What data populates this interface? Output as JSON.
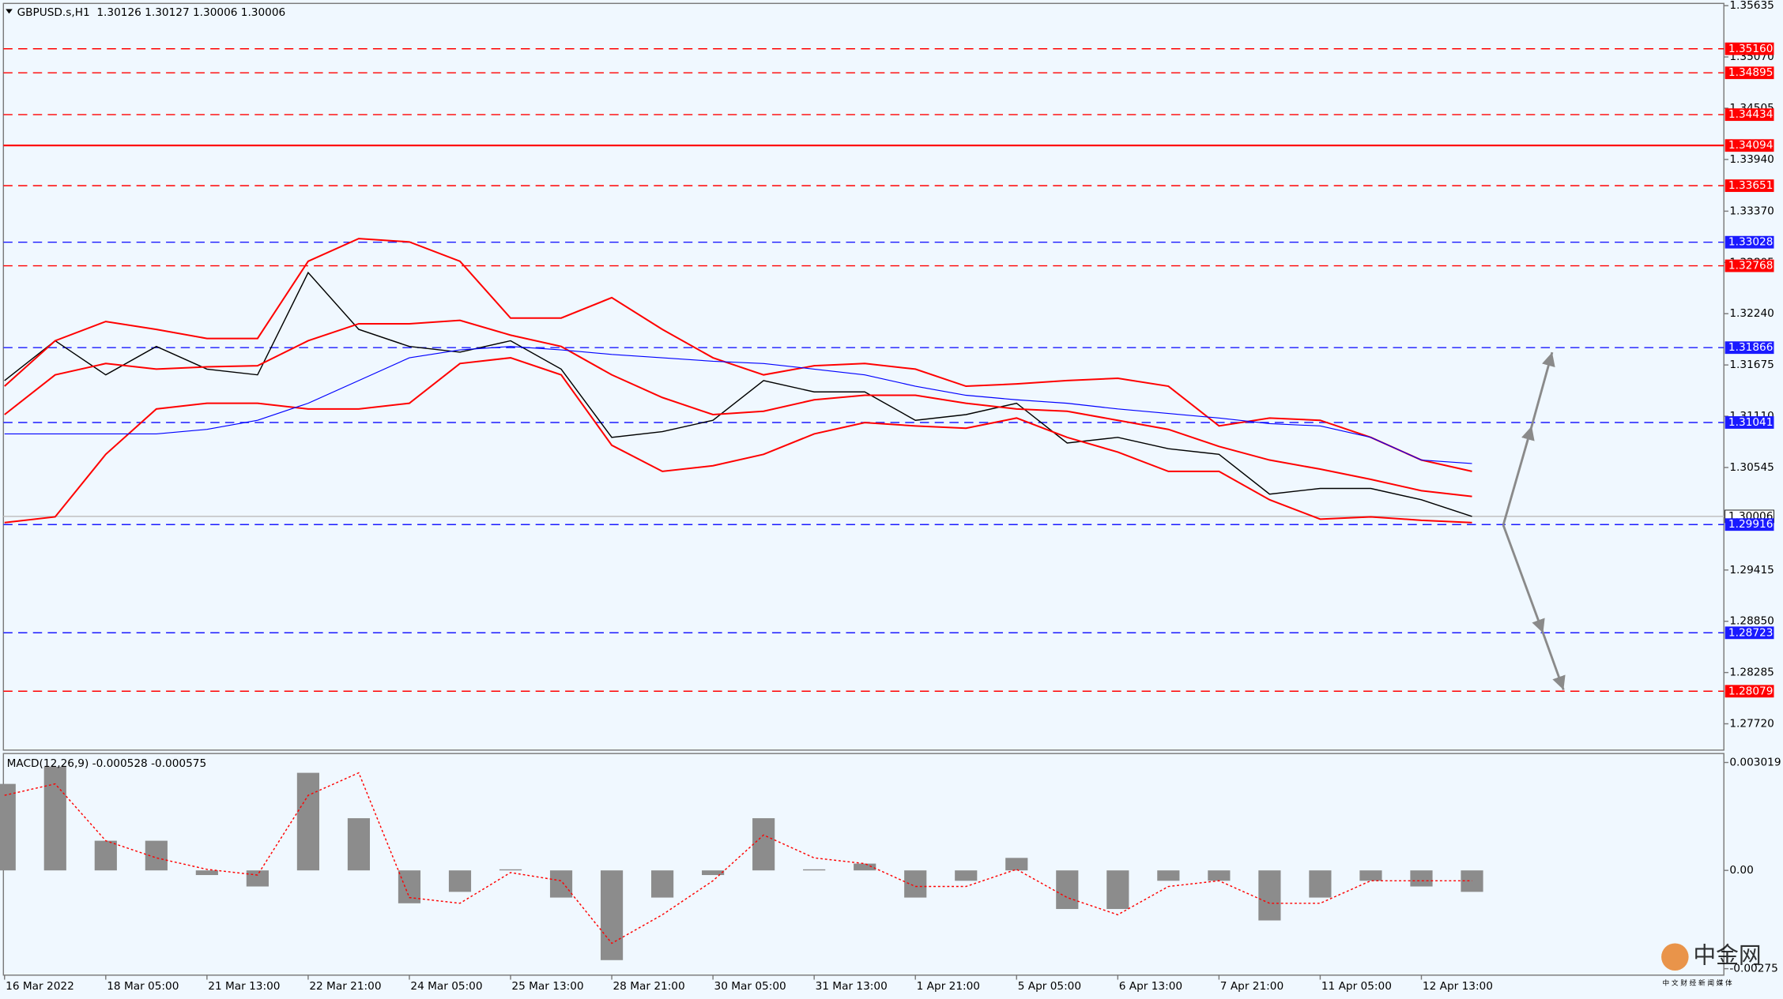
{
  "chart_data": [
    {
      "type": "line",
      "title": "GBPUSD.s,H1  1.30126 1.30127 1.30006 1.30006",
      "categories": [
        "16 Mar 2022",
        null,
        "18 Mar 05:00",
        null,
        "21 Mar 13:00",
        null,
        "22 Mar 21:00",
        null,
        "24 Mar 05:00",
        null,
        "25 Mar 13:00",
        null,
        "28 Mar 21:00",
        null,
        "30 Mar 05:00",
        null,
        "31 Mar 13:00",
        null,
        "1 Apr 21:00",
        null,
        "5 Apr 05:00",
        null,
        "6 Apr 13:00",
        null,
        "7 Apr 21:00",
        null,
        "11 Apr 05:00",
        null,
        "12 Apr 13:00",
        null
      ],
      "series": [
        {
          "color": "#000000",
          "values": [
            1.31503,
            1.31942,
            1.31566,
            1.31879,
            1.31629,
            1.31566,
            1.32693,
            1.32067,
            1.31879,
            1.31816,
            1.31942,
            1.31629,
            1.30877,
            1.3094,
            1.31065,
            1.31503,
            1.31378,
            1.31378,
            1.31065,
            1.31128,
            1.31253,
            1.30815,
            1.30877,
            1.30752,
            1.3069,
            1.30251,
            1.30314,
            1.30314,
            1.30189,
            1.30006
          ]
        },
        {
          "color": "#ff0000",
          "values": [
            1.31441,
            1.31942,
            1.32154,
            1.32067,
            1.31967,
            1.31967,
            1.32818,
            1.33068,
            1.33031,
            1.32818,
            1.32192,
            1.32192,
            1.32417,
            1.32067,
            1.31754,
            1.31566,
            1.31666,
            1.31691,
            1.31629,
            1.31441,
            1.31466,
            1.31503,
            1.31528,
            1.31441,
            1.31003,
            1.3109,
            1.31065,
            1.30877,
            1.30627,
            1.30502
          ]
        },
        {
          "color": "#ff0000",
          "values": [
            1.31128,
            1.31566,
            1.31691,
            1.31629,
            1.31654,
            1.31666,
            1.31942,
            1.32129,
            1.32129,
            1.32167,
            1.32004,
            1.31879,
            1.31566,
            1.31316,
            1.31128,
            1.31165,
            1.31291,
            1.31341,
            1.31341,
            1.31253,
            1.3119,
            1.31165,
            1.31065,
            1.30965,
            1.30777,
            1.30627,
            1.30527,
            1.30414,
            1.30289,
            1.30226
          ]
        },
        {
          "color": "#ff0000",
          "values": [
            1.29938,
            1.30001,
            1.3069,
            1.3119,
            1.31253,
            1.31253,
            1.3119,
            1.3119,
            1.31253,
            1.31691,
            1.31754,
            1.31566,
            1.3079,
            1.30502,
            1.30564,
            1.3069,
            1.30915,
            1.3104,
            1.31003,
            1.30978,
            1.3109,
            1.30877,
            1.30715,
            1.30502,
            1.30502,
            1.30189,
            1.29976,
            1.30001,
            1.29963,
            1.29938
          ]
        },
        {
          "color": "#0000ff",
          "values": [
            1.30915,
            1.30915,
            1.30915,
            1.30915,
            1.30965,
            1.31065,
            1.31253,
            1.31503,
            1.31754,
            1.31841,
            1.31879,
            1.31841,
            1.31791,
            1.31754,
            1.31716,
            1.31691,
            1.31629,
            1.31566,
            1.31441,
            1.31341,
            1.31291,
            1.31253,
            1.3119,
            1.3114,
            1.3109,
            1.31028,
            1.31003,
            1.30877,
            1.30627,
            1.30589
          ]
        }
      ],
      "ylim": [
        1.2743,
        1.3566
      ],
      "yticks": [
        {
          "value": 1.35635,
          "label": "1.35635"
        },
        {
          "value": 1.3507,
          "label": "1.35070"
        },
        {
          "value": 1.34505,
          "label": "1.34505"
        },
        {
          "value": 1.3394,
          "label": "1.33940"
        },
        {
          "value": 1.3337,
          "label": "1.33370"
        },
        {
          "value": 1.32805,
          "label": "1.32805"
        },
        {
          "value": 1.3224,
          "label": "1.32240"
        },
        {
          "value": 1.31675,
          "label": "1.31675"
        },
        {
          "value": 1.3111,
          "label": "1.31110"
        },
        {
          "value": 1.30545,
          "label": "1.30545"
        },
        {
          "value": 1.29415,
          "label": "1.29415"
        },
        {
          "value": 1.2885,
          "label": "1.28850"
        },
        {
          "value": 1.28285,
          "label": "1.28285"
        },
        {
          "value": 1.2772,
          "label": "1.27720"
        }
      ],
      "levels": [
        {
          "value": 1.3516,
          "label": "1.35160",
          "color": "#ff0000",
          "style": "dashed"
        },
        {
          "value": 1.34895,
          "label": "1.34895",
          "color": "#ff0000",
          "style": "dashed"
        },
        {
          "value": 1.34434,
          "label": "1.34434",
          "color": "#ff0000",
          "style": "dashed"
        },
        {
          "value": 1.34094,
          "label": "1.34094",
          "color": "#ff0000",
          "style": "solid"
        },
        {
          "value": 1.33651,
          "label": "1.33651",
          "color": "#ff0000",
          "style": "dashed"
        },
        {
          "value": 1.33028,
          "label": "1.33028",
          "color": "#1a1aff",
          "style": "dashed"
        },
        {
          "value": 1.32768,
          "label": "1.32768",
          "color": "#ff0000",
          "style": "dashed"
        },
        {
          "value": 1.31866,
          "label": "1.31866",
          "color": "#1a1aff",
          "style": "dashed"
        },
        {
          "value": 1.31041,
          "label": "1.31041",
          "color": "#1a1aff",
          "style": "dashed"
        },
        {
          "value": 1.30006,
          "label": "1.30006",
          "color": "#c0c0c0",
          "style": "bid"
        },
        {
          "value": 1.29916,
          "label": "1.29916",
          "color": "#1a1aff",
          "style": "dashed"
        },
        {
          "value": 1.28723,
          "label": "1.28723",
          "color": "#1a1aff",
          "style": "dashed"
        },
        {
          "value": 1.28079,
          "label": "1.28079",
          "color": "#ff0000",
          "style": "dashed"
        }
      ]
    },
    {
      "type": "bar",
      "title": "MACD(12,26,9) -0.000528 -0.000575",
      "series": [
        {
          "type": "bar",
          "color": "#8c8c8c",
          "values": [
            0.00242,
            0.0029,
            0.00083,
            0.00083,
            -0.00013,
            -0.00045,
            0.00273,
            0.00146,
            -0.00092,
            -0.0006,
            3e-05,
            -0.00076,
            -0.00251,
            -0.00076,
            -0.00013,
            0.00146,
            3e-05,
            0.00019,
            -0.00076,
            -0.00029,
            0.00035,
            -0.00108,
            -0.00108,
            -0.00029,
            -0.00029,
            -0.0014,
            -0.00076,
            -0.00029,
            -0.00045,
            -0.0006
          ]
        },
        {
          "type": "line",
          "color": "#ff0000",
          "values": [
            0.0021,
            0.00242,
            0.00083,
            0.00035,
            3e-05,
            -0.00013,
            0.0021,
            0.00273,
            -0.00076,
            -0.00092,
            -6e-05,
            -0.00029,
            -0.00204,
            -0.00124,
            -0.00029,
            0.00099,
            0.00035,
            0.00019,
            -0.00045,
            -0.00045,
            3e-05,
            -0.00076,
            -0.00124,
            -0.00045,
            -0.00029,
            -0.00092,
            -0.00092,
            -0.00029,
            -0.00029,
            -0.00029
          ]
        }
      ],
      "ylim": [
        -0.00293,
        0.00327
      ],
      "yticks": [
        {
          "value": 0.003019,
          "label": "0.003019"
        },
        {
          "value": 0,
          "label": "0.00"
        },
        {
          "value": -0.00275,
          "label": "-0.00275"
        }
      ]
    }
  ],
  "watermark": {
    "text": "中金网",
    "tagline": "中 文 财 经 新 闻 媒 体"
  }
}
